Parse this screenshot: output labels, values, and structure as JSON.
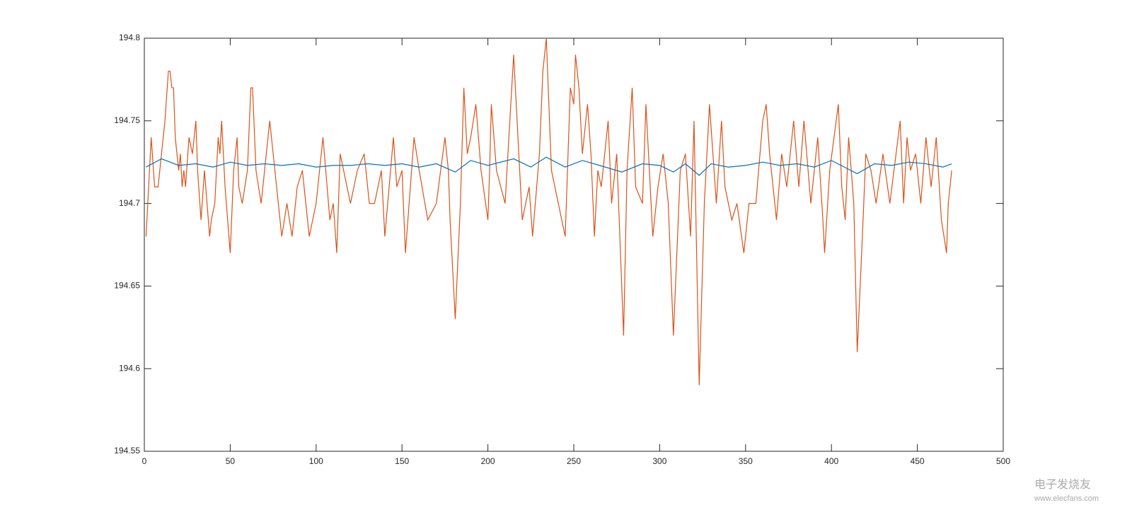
{
  "chart_data": {
    "type": "line",
    "xlim": [
      0,
      500
    ],
    "xticks": [
      0,
      50,
      100,
      150,
      200,
      250,
      300,
      350,
      400,
      450,
      500
    ],
    "ylim": [
      194.55,
      194.8
    ],
    "yticks": [
      194.55,
      194.6,
      194.65,
      194.7,
      194.75,
      194.8
    ],
    "grid": false,
    "series": [
      {
        "color": "#D95319",
        "x": [
          1,
          4,
          6,
          8,
          12,
          14,
          15,
          16,
          17,
          18,
          20,
          21,
          22,
          23,
          24,
          26,
          28,
          30,
          31,
          33,
          35,
          38,
          39,
          41,
          43,
          44,
          45,
          47,
          50,
          52,
          54,
          55,
          57,
          60,
          62,
          63,
          65,
          68,
          70,
          73,
          76,
          80,
          83,
          86,
          89,
          92,
          96,
          100,
          104,
          108,
          110,
          112,
          114,
          116,
          120,
          124,
          128,
          131,
          134,
          138,
          140,
          145,
          147,
          150,
          152,
          157,
          160,
          165,
          170,
          175,
          177,
          178,
          181,
          184,
          186,
          188,
          190,
          193,
          196,
          200,
          201,
          202,
          205,
          210,
          215,
          220,
          224,
          226,
          230,
          232,
          234,
          237,
          241,
          245,
          248,
          250,
          251,
          253,
          255,
          258,
          260,
          262,
          264,
          266,
          270,
          272,
          275,
          279,
          281,
          284,
          286,
          290,
          292,
          296,
          299,
          302,
          305,
          308,
          312,
          315,
          318,
          320,
          323,
          326,
          329,
          333,
          336,
          338,
          342,
          345,
          349,
          352,
          356,
          360,
          362,
          364,
          368,
          371,
          374,
          378,
          381,
          384,
          388,
          392,
          395,
          396,
          399,
          404,
          406,
          408,
          410,
          413,
          415,
          418,
          420,
          423,
          426,
          430,
          434,
          440,
          442,
          444,
          446,
          449,
          452,
          455,
          458,
          461,
          464,
          467,
          468,
          470
        ],
        "values": [
          194.68,
          194.74,
          194.71,
          194.71,
          194.75,
          194.78,
          194.78,
          194.77,
          194.77,
          194.74,
          194.72,
          194.73,
          194.71,
          194.72,
          194.71,
          194.74,
          194.73,
          194.75,
          194.72,
          194.69,
          194.72,
          194.68,
          194.69,
          194.7,
          194.74,
          194.73,
          194.75,
          194.71,
          194.67,
          194.72,
          194.74,
          194.71,
          194.7,
          194.72,
          194.77,
          194.77,
          194.72,
          194.7,
          194.72,
          194.75,
          194.72,
          194.68,
          194.7,
          194.68,
          194.71,
          194.72,
          194.68,
          194.7,
          194.74,
          194.69,
          194.7,
          194.67,
          194.73,
          194.72,
          194.7,
          194.72,
          194.73,
          194.7,
          194.7,
          194.72,
          194.68,
          194.74,
          194.71,
          194.72,
          194.67,
          194.74,
          194.72,
          194.69,
          194.7,
          194.74,
          194.72,
          194.69,
          194.63,
          194.7,
          194.77,
          194.73,
          194.74,
          194.76,
          194.72,
          194.69,
          194.72,
          194.76,
          194.72,
          194.7,
          194.79,
          194.69,
          194.71,
          194.68,
          194.73,
          194.78,
          194.8,
          194.72,
          194.7,
          194.68,
          194.77,
          194.76,
          194.79,
          194.77,
          194.73,
          194.76,
          194.73,
          194.68,
          194.72,
          194.71,
          194.75,
          194.7,
          194.73,
          194.62,
          194.72,
          194.77,
          194.71,
          194.7,
          194.76,
          194.68,
          194.71,
          194.73,
          194.7,
          194.62,
          194.72,
          194.73,
          194.68,
          194.75,
          194.59,
          194.7,
          194.76,
          194.7,
          194.75,
          194.71,
          194.69,
          194.7,
          194.67,
          194.7,
          194.7,
          194.75,
          194.76,
          194.73,
          194.69,
          194.73,
          194.71,
          194.75,
          194.71,
          194.75,
          194.7,
          194.74,
          194.69,
          194.67,
          194.72,
          194.76,
          194.71,
          194.69,
          194.74,
          194.7,
          194.61,
          194.68,
          194.73,
          194.72,
          194.7,
          194.73,
          194.7,
          194.75,
          194.7,
          194.74,
          194.72,
          194.73,
          194.7,
          194.74,
          194.71,
          194.74,
          194.69,
          194.67,
          194.7,
          194.72
        ]
      },
      {
        "color": "#0072BD",
        "x": [
          1,
          10,
          20,
          30,
          40,
          50,
          60,
          70,
          80,
          90,
          100,
          110,
          120,
          130,
          140,
          150,
          160,
          170,
          181,
          190,
          200,
          215,
          225,
          234,
          245,
          255,
          265,
          278,
          290,
          300,
          308,
          315,
          323,
          330,
          340,
          350,
          360,
          370,
          380,
          390,
          400,
          415,
          425,
          435,
          445,
          455,
          465,
          470
        ],
        "values": [
          194.722,
          194.727,
          194.723,
          194.724,
          194.722,
          194.725,
          194.723,
          194.724,
          194.723,
          194.724,
          194.722,
          194.723,
          194.723,
          194.724,
          194.723,
          194.724,
          194.722,
          194.724,
          194.719,
          194.726,
          194.723,
          194.727,
          194.722,
          194.728,
          194.722,
          194.726,
          194.723,
          194.719,
          194.724,
          194.723,
          194.719,
          194.724,
          194.717,
          194.724,
          194.722,
          194.723,
          194.725,
          194.723,
          194.724,
          194.722,
          194.726,
          194.718,
          194.724,
          194.723,
          194.725,
          194.724,
          194.722,
          194.724
        ]
      }
    ],
    "watermark": [
      "电子发烧友",
      "www.elecfans.com"
    ]
  }
}
